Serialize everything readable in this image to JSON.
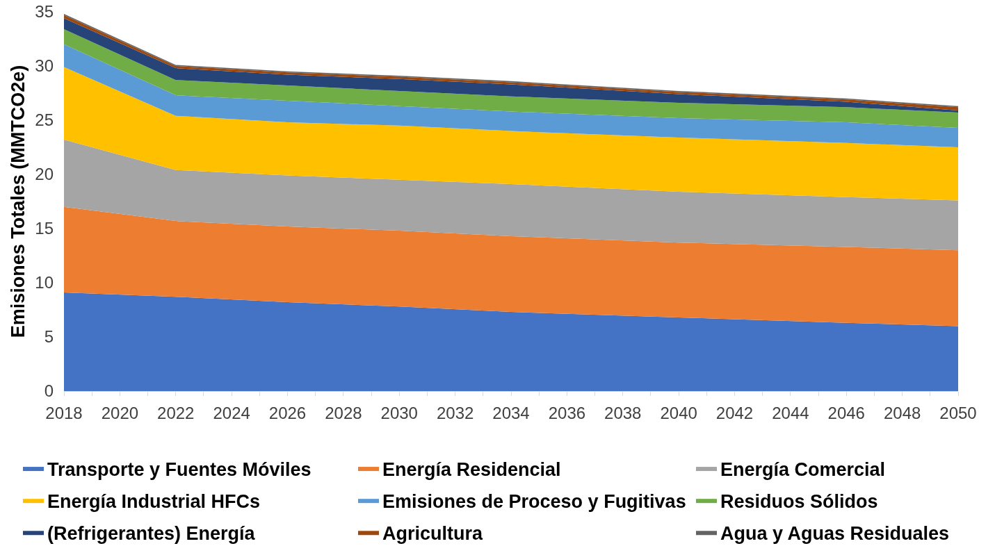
{
  "chart_data": {
    "type": "area",
    "stacked": true,
    "ylabel": "Emisiones Totales (MMTCO2e)",
    "x": [
      2018,
      2022,
      2026,
      2030,
      2034,
      2040,
      2046,
      2050
    ],
    "xlim": [
      2018,
      2050
    ],
    "xticks": [
      2018,
      {
        "value": 2019,
        "label": null
      },
      2020,
      {
        "value": 2021,
        "label": null
      },
      2022,
      {
        "value": 2023,
        "label": null
      },
      2024,
      {
        "value": 2025,
        "label": null
      },
      2026,
      {
        "value": 2027,
        "label": null
      },
      2028,
      {
        "value": 2029,
        "label": null
      },
      2030,
      {
        "value": 2031,
        "label": null
      },
      2032,
      {
        "value": 2033,
        "label": null
      },
      2034,
      {
        "value": 2035,
        "label": null
      },
      2036,
      {
        "value": 2037,
        "label": null
      },
      2038,
      {
        "value": 2039,
        "label": null
      },
      2040,
      {
        "value": 2041,
        "label": null
      },
      2042,
      {
        "value": 2043,
        "label": null
      },
      2044,
      {
        "value": 2045,
        "label": null
      },
      2046,
      {
        "value": 2047,
        "label": null
      },
      2048,
      {
        "value": 2049,
        "label": null
      },
      2050
    ],
    "ylim": [
      0,
      35
    ],
    "yticks": [
      0,
      5,
      10,
      15,
      20,
      25,
      30,
      35
    ],
    "grid": false,
    "legend": "bottom",
    "series": [
      {
        "name": "Transporte y Fuentes Móviles",
        "color": "#4472c4",
        "values": [
          9.1,
          8.7,
          8.2,
          7.8,
          7.3,
          6.8,
          6.3,
          6.0
        ]
      },
      {
        "name": "Energía Residencial",
        "color": "#ed7d31",
        "values": [
          7.9,
          7.0,
          7.0,
          7.0,
          7.0,
          6.9,
          7.0,
          7.0
        ]
      },
      {
        "name": "Energía Comercial",
        "color": "#a5a5a5",
        "values": [
          6.2,
          4.7,
          4.7,
          4.7,
          4.8,
          4.7,
          4.6,
          4.6
        ]
      },
      {
        "name": "Energía Industrial HFCs",
        "color": "#ffc000",
        "values": [
          6.7,
          5.0,
          4.9,
          5.0,
          4.9,
          5.0,
          5.0,
          4.9
        ]
      },
      {
        "name": "Emisiones de Proceso y Fugitivas",
        "color": "#5b9bd5",
        "values": [
          2.1,
          1.9,
          2.0,
          1.8,
          1.8,
          1.8,
          1.9,
          1.8
        ]
      },
      {
        "name": "Residuos Sólidos",
        "color": "#70ad47",
        "values": [
          1.4,
          1.4,
          1.4,
          1.4,
          1.4,
          1.4,
          1.4,
          1.4
        ]
      },
      {
        "name": "(Refrigerantes) Energía",
        "color": "#264478",
        "values": [
          1.0,
          1.1,
          1.0,
          1.1,
          1.1,
          0.8,
          0.5,
          0.2
        ]
      },
      {
        "name": "Agricultura",
        "color": "#9e480e",
        "values": [
          0.3,
          0.2,
          0.2,
          0.2,
          0.2,
          0.2,
          0.2,
          0.3
        ]
      },
      {
        "name": "Agua y Aguas Residuales",
        "color": "#636363",
        "values": [
          0.1,
          0.1,
          0.1,
          0.1,
          0.1,
          0.1,
          0.1,
          0.1
        ]
      }
    ]
  }
}
